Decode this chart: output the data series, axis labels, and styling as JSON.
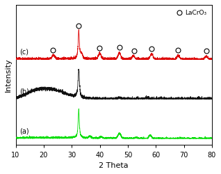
{
  "x_range": [
    10,
    80
  ],
  "xlabel": "2 Theta",
  "ylabel": "Intensity",
  "legend_label": "LaCrO₃",
  "tick_positions": [
    10,
    20,
    30,
    40,
    50,
    60,
    70,
    80
  ],
  "curve_a_color": "#00dd00",
  "curve_b_color": "#111111",
  "curve_c_color": "#dd0000",
  "label_a": "(a)",
  "label_b": "(b)",
  "label_c": "(c)",
  "circle_positions_c": [
    23.5,
    32.5,
    40.0,
    47.0,
    52.0,
    58.5,
    68.0,
    78.0
  ],
  "background_color": "#ffffff",
  "noise_seed": 42
}
